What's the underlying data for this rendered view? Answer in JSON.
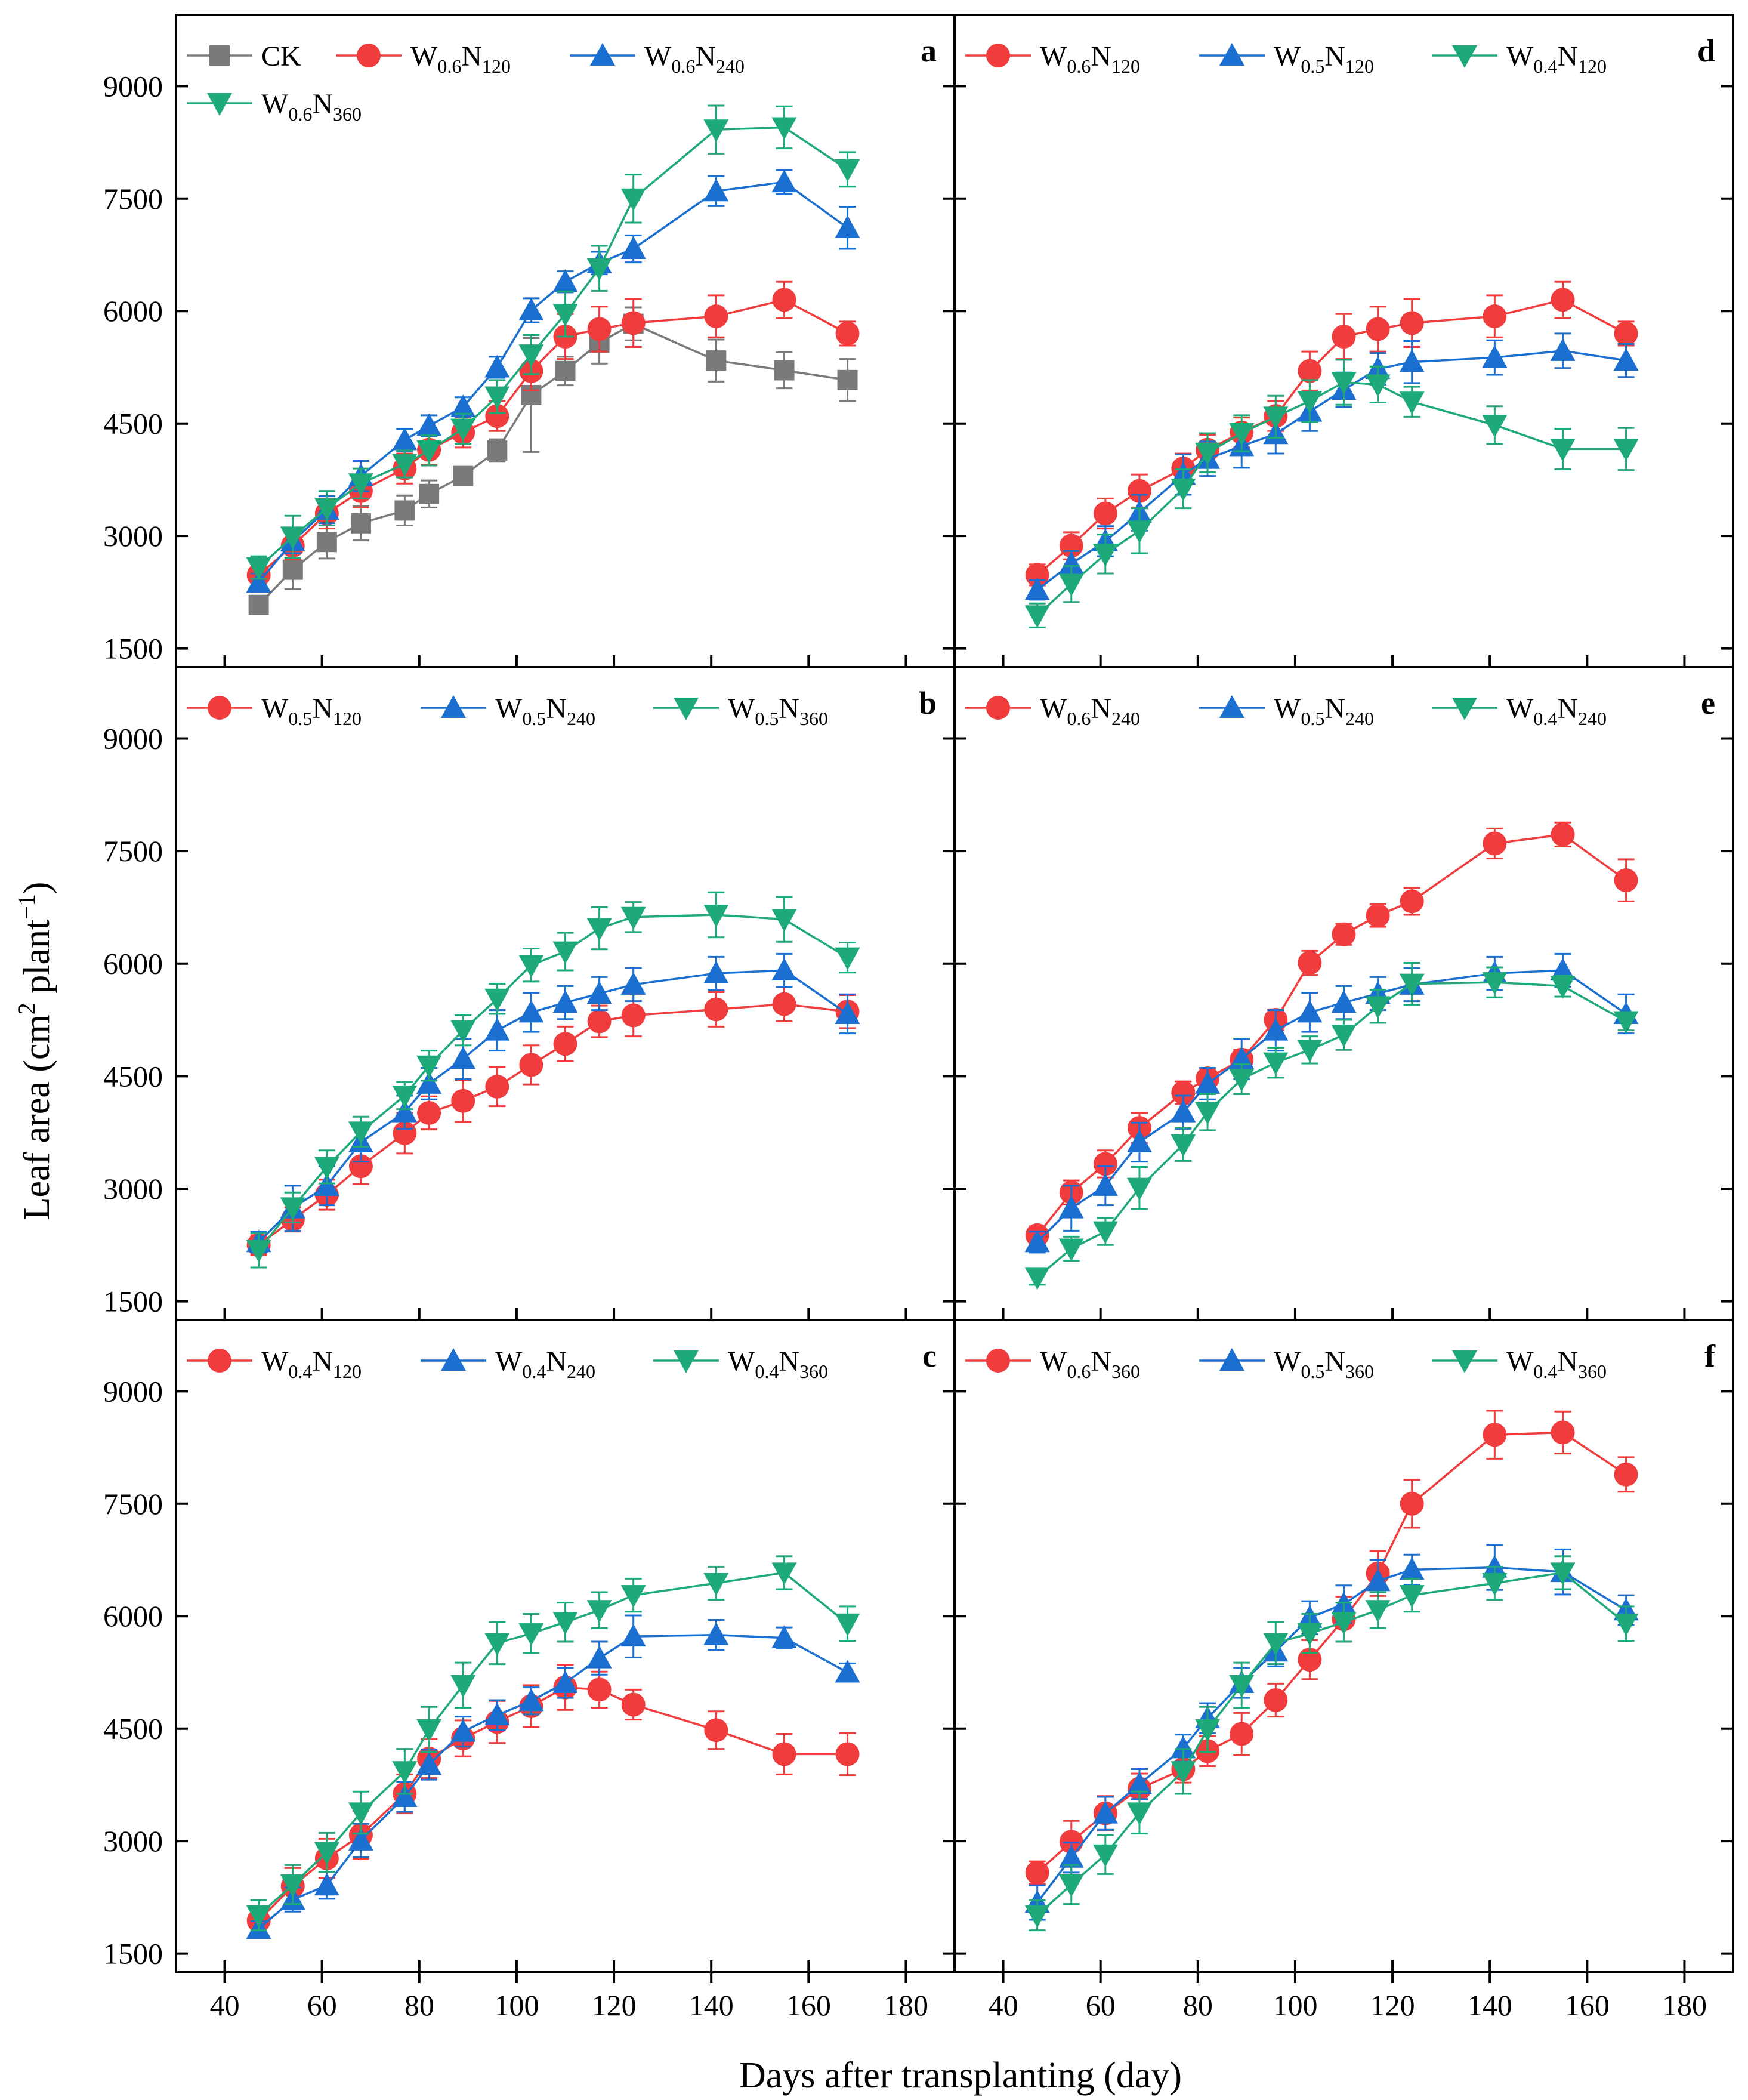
{
  "chart_data": {
    "type": "line",
    "x_label": "Days after transplanting (day)",
    "y_label": {
      "prefix": "Leaf area (cm",
      "sup1": "2",
      "middle": " plant",
      "sup2": "−1",
      "suffix": ")"
    },
    "x_range": [
      30,
      190
    ],
    "y_range": [
      1250,
      9950
    ],
    "x_ticks": [
      40,
      60,
      80,
      100,
      120,
      140,
      160,
      180
    ],
    "y_ticks": [
      1500,
      3000,
      4500,
      6000,
      7500,
      9000
    ],
    "x": [
      47,
      54,
      61,
      68,
      77,
      82,
      89,
      96,
      103,
      110,
      117,
      124,
      141,
      155,
      168
    ],
    "colors": {
      "gray": "#7a7a7a",
      "red": "#f03c3c",
      "blue": "#1a6fd1",
      "green": "#1ea978"
    },
    "panels": [
      {
        "id": "a",
        "label": "a",
        "series": [
          {
            "name": "CK",
            "base": "CK",
            "sub": "",
            "suffix": "",
            "color": "#7a7a7a",
            "marker": "square",
            "values": [
              2080,
              2550,
              2920,
              3170,
              3340,
              3560,
              3800,
              4140,
              4880,
              5200,
              5580,
              5830,
              5340,
              5210,
              5080
            ],
            "errors": [
              80,
              260,
              220,
              230,
              200,
              180,
              100,
              150,
              760,
              190,
              280,
              220,
              280,
              240,
              280
            ]
          },
          {
            "name": "W0.6N120",
            "base": "W",
            "sub": "0.6",
            "suffix": "N",
            "sub2": "120",
            "color": "#f03c3c",
            "marker": "circle",
            "values": [
              2480,
              2870,
              3300,
              3600,
              3900,
              4150,
              4380,
              4600,
              5200,
              5660,
              5760,
              5840,
              5930,
              6150,
              5700
            ],
            "errors": [
              140,
              180,
              200,
              220,
              200,
              200,
              200,
              200,
              260,
              300,
              300,
              320,
              280,
              240,
              160
            ]
          },
          {
            "name": "W0.6N240",
            "base": "W",
            "sub": "0.6",
            "suffix": "N",
            "sub2": "240",
            "color": "#1a6fd1",
            "marker": "triangle",
            "values": [
              2380,
              2930,
              3350,
              3800,
              4280,
              4470,
              4720,
              5250,
              6010,
              6390,
              6640,
              6830,
              7600,
              7720,
              7110
            ],
            "errors": [
              120,
              160,
              180,
              200,
              150,
              140,
              130,
              140,
              160,
              140,
              150,
              180,
              200,
              160,
              280
            ]
          },
          {
            "name": "W0.6N360",
            "base": "W",
            "sub": "0.6",
            "suffix": "N",
            "sub2": "360",
            "color": "#1ea978",
            "marker": "tridown",
            "values": [
              2580,
              2990,
              3370,
              3700,
              3960,
              4140,
              4430,
              4860,
              5420,
              5960,
              6570,
              7500,
              8420,
              8450,
              7890
            ],
            "errors": [
              150,
              280,
              230,
              200,
              180,
              200,
              200,
              220,
              260,
              300,
              300,
              320,
              320,
              280,
              230
            ]
          }
        ]
      },
      {
        "id": "b",
        "label": "b",
        "series": [
          {
            "name": "W0.5N120",
            "base": "W",
            "sub": "0.5",
            "suffix": "N",
            "sub2": "120",
            "color": "#f03c3c",
            "marker": "circle",
            "values": [
              2250,
              2590,
              2920,
              3300,
              3740,
              4010,
              4170,
              4360,
              4650,
              4930,
              5230,
              5310,
              5390,
              5460,
              5360
            ],
            "errors": [
              130,
              160,
              200,
              240,
              270,
              220,
              280,
              260,
              260,
              230,
              210,
              280,
              230,
              230,
              220
            ]
          },
          {
            "name": "W0.5N240",
            "base": "W",
            "sub": "0.5",
            "suffix": "N",
            "sub2": "240",
            "color": "#1a6fd1",
            "marker": "triangle",
            "values": [
              2290,
              2740,
              3040,
              3620,
              4020,
              4400,
              4730,
              5110,
              5350,
              5480,
              5600,
              5720,
              5870,
              5910,
              5330
            ],
            "errors": [
              140,
              300,
              260,
              260,
              220,
              210,
              270,
              270,
              260,
              220,
              220,
              220,
              220,
              220,
              260
            ]
          },
          {
            "name": "W0.5N360",
            "base": "W",
            "sub": "0.5",
            "suffix": "N",
            "sub2": "360",
            "color": "#1ea978",
            "marker": "tridown",
            "values": [
              2180,
              2750,
              3290,
              3760,
              4240,
              4640,
              5110,
              5530,
              5980,
              6160,
              6470,
              6620,
              6650,
              6590,
              6080
            ],
            "errors": [
              230,
              200,
              220,
              200,
              180,
              200,
              200,
              200,
              220,
              250,
              280,
              200,
              300,
              300,
              200
            ]
          }
        ]
      },
      {
        "id": "c",
        "label": "c",
        "series": [
          {
            "name": "W0.4N120",
            "base": "W",
            "sub": "0.4",
            "suffix": "N",
            "sub2": "120",
            "color": "#f03c3c",
            "marker": "circle",
            "values": [
              1940,
              2400,
              2770,
              3080,
              3630,
              4100,
              4370,
              4590,
              4800,
              5050,
              5020,
              4820,
              4480,
              4160,
              4160
            ],
            "errors": [
              160,
              240,
              260,
              320,
              260,
              260,
              240,
              280,
              280,
              300,
              240,
              200,
              250,
              270,
              280
            ]
          },
          {
            "name": "W0.4N240",
            "base": "W",
            "sub": "0.4",
            "suffix": "N",
            "sub2": "240",
            "color": "#1a6fd1",
            "marker": "triangle",
            "values": [
              1830,
              2220,
              2410,
              3010,
              3590,
              4020,
              4460,
              4680,
              4870,
              5110,
              5440,
              5730,
              5750,
              5710,
              5250
            ],
            "errors": [
              100,
              160,
              180,
              220,
              200,
              200,
              200,
              200,
              180,
              200,
              220,
              280,
              200,
              140,
              120
            ]
          },
          {
            "name": "W0.4N360",
            "base": "W",
            "sub": "0.4",
            "suffix": "N",
            "sub2": "360",
            "color": "#1ea978",
            "marker": "tridown",
            "values": [
              2010,
              2420,
              2850,
              3380,
              3930,
              4490,
              5080,
              5640,
              5770,
              5920,
              6080,
              6280,
              6440,
              6580,
              5900
            ],
            "errors": [
              200,
              260,
              260,
              280,
              300,
              300,
              300,
              280,
              260,
              260,
              240,
              220,
              220,
              220,
              230
            ]
          }
        ]
      },
      {
        "id": "d",
        "label": "d",
        "series": [
          {
            "name": "W0.6N120",
            "base": "W",
            "sub": "0.6",
            "suffix": "N",
            "sub2": "120",
            "color": "#f03c3c",
            "marker": "circle",
            "values": [
              2480,
              2870,
              3300,
              3600,
              3900,
              4150,
              4380,
              4600,
              5200,
              5660,
              5760,
              5840,
              5930,
              6150,
              5700
            ],
            "errors": [
              140,
              180,
              200,
              220,
              200,
              200,
              200,
              200,
              260,
              300,
              300,
              320,
              280,
              240,
              160
            ]
          },
          {
            "name": "W0.5N120",
            "base": "W",
            "sub": "0.5",
            "suffix": "N",
            "sub2": "120",
            "color": "#1a6fd1",
            "marker": "triangle",
            "values": [
              2280,
              2630,
              2930,
              3310,
              3820,
              4030,
              4200,
              4360,
              4660,
              4950,
              5230,
              5320,
              5380,
              5470,
              5340
            ],
            "errors": [
              130,
              170,
              200,
              240,
              270,
              230,
              290,
              260,
              260,
              230,
              210,
              280,
              230,
              230,
              220
            ]
          },
          {
            "name": "W0.4N120",
            "base": "W",
            "sub": "0.4",
            "suffix": "N",
            "sub2": "120",
            "color": "#1ea978",
            "marker": "tridown",
            "values": [
              1940,
              2360,
              2760,
              3070,
              3630,
              4110,
              4370,
              4590,
              4800,
              5050,
              5020,
              4790,
              4480,
              4160,
              4160
            ],
            "errors": [
              160,
              240,
              260,
              300,
              260,
              260,
              240,
              280,
              280,
              300,
              240,
              200,
              250,
              270,
              280
            ]
          }
        ]
      },
      {
        "id": "e",
        "label": "e",
        "series": [
          {
            "name": "W0.6N240",
            "base": "W",
            "sub": "0.6",
            "suffix": "N",
            "sub2": "240",
            "color": "#f03c3c",
            "marker": "circle",
            "values": [
              2380,
              2950,
              3330,
              3810,
              4280,
              4470,
              4720,
              5250,
              6010,
              6390,
              6640,
              6830,
              7600,
              7720,
              7110
            ],
            "errors": [
              120,
              160,
              180,
              200,
              150,
              140,
              130,
              140,
              160,
              140,
              150,
              180,
              200,
              160,
              280
            ]
          },
          {
            "name": "W0.5N240",
            "base": "W",
            "sub": "0.5",
            "suffix": "N",
            "sub2": "240",
            "color": "#1a6fd1",
            "marker": "triangle",
            "values": [
              2290,
              2740,
              3040,
              3620,
              4020,
              4400,
              4730,
              5110,
              5350,
              5480,
              5600,
              5720,
              5870,
              5910,
              5330
            ],
            "errors": [
              140,
              300,
              260,
              260,
              220,
              210,
              270,
              270,
              260,
              220,
              220,
              220,
              220,
              220,
              260
            ]
          },
          {
            "name": "W0.4N240",
            "base": "W",
            "sub": "0.4",
            "suffix": "N",
            "sub2": "240",
            "color": "#1ea978",
            "marker": "tridown",
            "values": [
              1820,
              2200,
              2430,
              3010,
              3590,
              4020,
              4460,
              4680,
              4850,
              5050,
              5430,
              5730,
              5750,
              5700,
              5230
            ],
            "errors": [
              100,
              160,
              180,
              280,
              220,
              240,
              200,
              200,
              180,
              200,
              220,
              280,
              200,
              140,
              120
            ]
          }
        ]
      },
      {
        "id": "f",
        "label": "f",
        "series": [
          {
            "name": "W0.6N360",
            "base": "W",
            "sub": "0.6",
            "suffix": "N",
            "sub2": "360",
            "color": "#f03c3c",
            "marker": "circle",
            "values": [
              2580,
              2990,
              3370,
              3700,
              3960,
              4200,
              4430,
              4880,
              5420,
              5960,
              6570,
              7500,
              8420,
              8450,
              7890
            ],
            "errors": [
              150,
              280,
              230,
              200,
              180,
              200,
              280,
              220,
              260,
              300,
              300,
              320,
              320,
              280,
              230
            ]
          },
          {
            "name": "W0.5N360",
            "base": "W",
            "sub": "0.5",
            "suffix": "N",
            "sub2": "360",
            "color": "#1a6fd1",
            "marker": "triangle",
            "values": [
              2180,
              2780,
              3370,
              3760,
              4240,
              4640,
              5110,
              5530,
              5980,
              6160,
              6470,
              6620,
              6650,
              6590,
              6080
            ],
            "errors": [
              230,
              200,
              220,
              200,
              180,
              200,
              200,
              200,
              220,
              250,
              280,
              200,
              300,
              300,
              200
            ]
          },
          {
            "name": "W0.4N360",
            "base": "W",
            "sub": "0.4",
            "suffix": "N",
            "sub2": "360",
            "color": "#1ea978",
            "marker": "tridown",
            "values": [
              2010,
              2420,
              2820,
              3380,
              3930,
              4490,
              5080,
              5640,
              5770,
              5920,
              6080,
              6280,
              6440,
              6580,
              5900
            ],
            "errors": [
              200,
              260,
              260,
              280,
              300,
              300,
              300,
              280,
              260,
              260,
              240,
              220,
              220,
              220,
              230
            ]
          }
        ]
      }
    ]
  }
}
